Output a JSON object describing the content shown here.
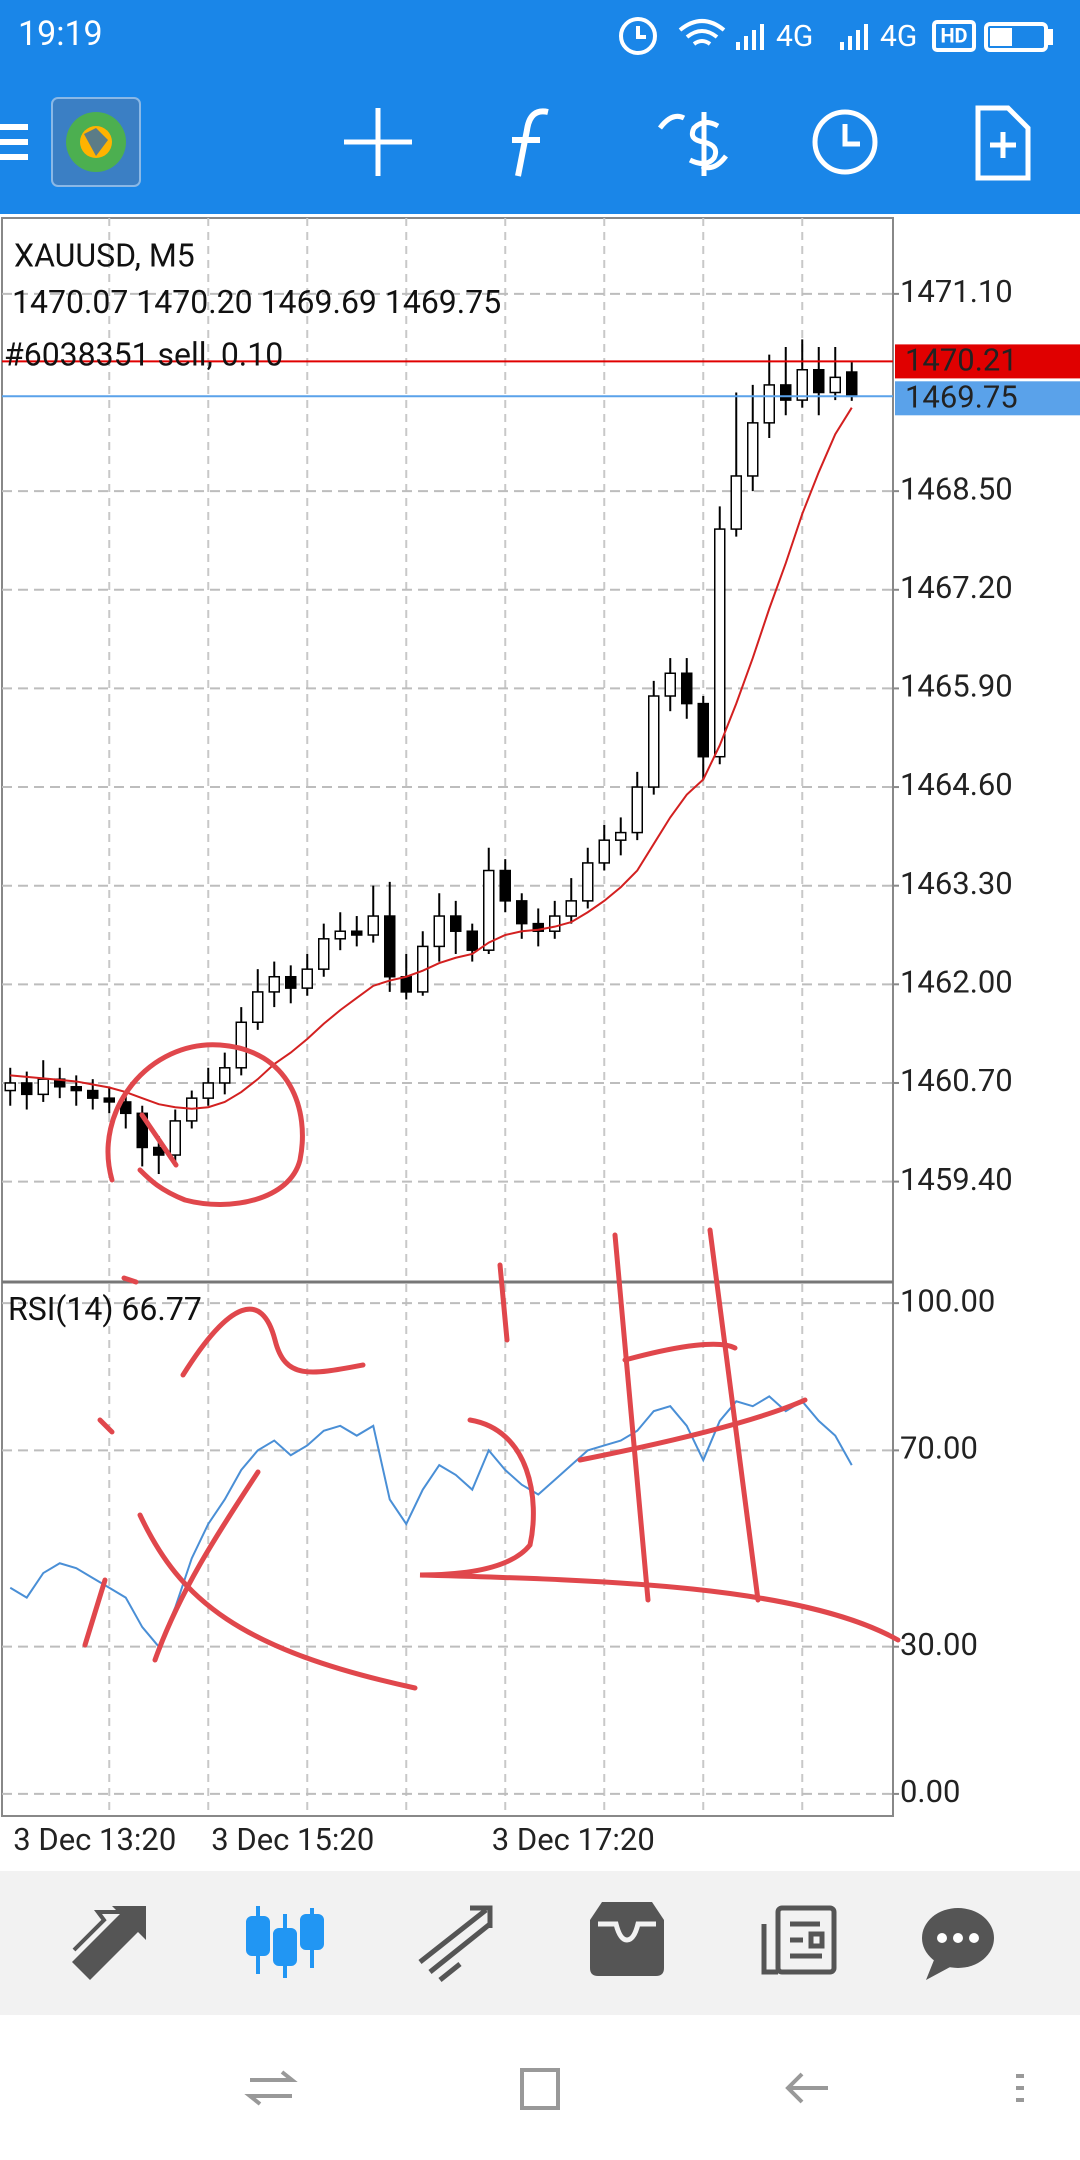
{
  "status_bar": {
    "time": "19:19",
    "network_1": "4G",
    "network_2": "4G",
    "hd": "HD"
  },
  "chart_data": [
    {
      "type": "candlestick",
      "title": "XAUUSD, M5",
      "quote": {
        "values": [
          1470.07,
          1470.2,
          1469.69,
          1469.75
        ],
        "value_labels": [
          "1470.07",
          "1470.20",
          "1469.69",
          "1469.75"
        ]
      },
      "order": {
        "label": "#6038351 sell, 0.10",
        "price": 1470.21,
        "color": "#e00000"
      },
      "bid": {
        "price": 1469.75,
        "color": "#5aa2ea"
      },
      "categories": [
        null,
        null,
        null,
        null,
        null,
        null,
        "3 Dec 13:20",
        null,
        null,
        null,
        null,
        null,
        null,
        null,
        null,
        null,
        null,
        null,
        "3 Dec 15:20",
        null,
        null,
        null,
        null,
        null,
        null,
        null,
        null,
        null,
        null,
        null,
        null,
        null,
        null,
        null,
        null,
        "3 Dec 17:20",
        null,
        null,
        null,
        null,
        null,
        null,
        null,
        null,
        null,
        null,
        null,
        null,
        null,
        null,
        null,
        null
      ],
      "open": [
        1460.6,
        1460.7,
        1460.55,
        1460.75,
        1460.65,
        1460.6,
        1460.5,
        1460.45,
        1460.3,
        1459.85,
        1459.75,
        1460.2,
        1460.5,
        1460.7,
        1460.9,
        1461.5,
        1461.9,
        1462.1,
        1461.95,
        1462.2,
        1462.6,
        1462.7,
        1462.65,
        1462.9,
        1462.1,
        1461.9,
        1462.5,
        1462.9,
        1462.7,
        1462.45,
        1463.5,
        1463.1,
        1462.8,
        1462.7,
        1462.9,
        1463.1,
        1463.6,
        1463.9,
        1464.0,
        1464.6,
        1465.8,
        1466.1,
        1465.7,
        1465.0,
        1468.0,
        1468.7,
        1469.4,
        1469.9,
        1469.7,
        1470.1,
        1469.8,
        1470.07
      ],
      "high": [
        1460.9,
        1460.85,
        1461.0,
        1460.9,
        1460.8,
        1460.75,
        1460.65,
        1460.55,
        1460.4,
        1460.0,
        1460.35,
        1460.6,
        1460.9,
        1461.1,
        1461.7,
        1462.2,
        1462.3,
        1462.25,
        1462.4,
        1462.8,
        1462.95,
        1462.9,
        1463.3,
        1463.35,
        1462.4,
        1462.7,
        1463.2,
        1463.1,
        1462.8,
        1463.8,
        1463.65,
        1463.2,
        1463.0,
        1463.1,
        1463.4,
        1463.8,
        1464.1,
        1464.2,
        1464.8,
        1466.0,
        1466.3,
        1466.3,
        1465.8,
        1468.3,
        1469.8,
        1469.9,
        1470.3,
        1470.4,
        1470.5,
        1470.4,
        1470.4,
        1470.2
      ],
      "low": [
        1460.4,
        1460.35,
        1460.45,
        1460.5,
        1460.4,
        1460.35,
        1460.3,
        1460.1,
        1459.6,
        1459.5,
        1459.65,
        1460.1,
        1460.4,
        1460.55,
        1460.8,
        1461.4,
        1461.7,
        1461.75,
        1461.85,
        1462.1,
        1462.45,
        1462.5,
        1462.55,
        1461.9,
        1461.8,
        1461.85,
        1462.3,
        1462.4,
        1462.3,
        1462.4,
        1462.95,
        1462.6,
        1462.5,
        1462.6,
        1462.8,
        1463.0,
        1463.5,
        1463.7,
        1463.9,
        1464.5,
        1465.6,
        1465.5,
        1464.7,
        1464.9,
        1467.9,
        1468.5,
        1469.2,
        1469.5,
        1469.6,
        1469.5,
        1469.7,
        1469.69
      ],
      "close": [
        1460.7,
        1460.55,
        1460.75,
        1460.65,
        1460.6,
        1460.5,
        1460.45,
        1460.3,
        1459.85,
        1459.75,
        1460.2,
        1460.5,
        1460.7,
        1460.9,
        1461.5,
        1461.9,
        1462.1,
        1461.95,
        1462.2,
        1462.6,
        1462.7,
        1462.65,
        1462.9,
        1462.1,
        1461.9,
        1462.5,
        1462.9,
        1462.7,
        1462.45,
        1463.5,
        1463.1,
        1462.8,
        1462.7,
        1462.9,
        1463.1,
        1463.6,
        1463.9,
        1464.0,
        1464.6,
        1465.8,
        1466.1,
        1465.7,
        1465.0,
        1468.0,
        1468.7,
        1469.4,
        1469.9,
        1469.7,
        1470.1,
        1469.8,
        1470.0,
        1469.75
      ],
      "ma": {
        "color": "#d32020",
        "values": [
          1460.8,
          1460.78,
          1460.76,
          1460.74,
          1460.72,
          1460.68,
          1460.64,
          1460.58,
          1460.5,
          1460.42,
          1460.38,
          1460.36,
          1460.38,
          1460.45,
          1460.58,
          1460.75,
          1460.95,
          1461.1,
          1461.28,
          1461.48,
          1461.66,
          1461.82,
          1461.98,
          1462.05,
          1462.1,
          1462.18,
          1462.28,
          1462.35,
          1462.4,
          1462.55,
          1462.65,
          1462.7,
          1462.72,
          1462.76,
          1462.82,
          1462.95,
          1463.1,
          1463.28,
          1463.5,
          1463.85,
          1464.2,
          1464.5,
          1464.7,
          1465.15,
          1465.7,
          1466.3,
          1466.95,
          1467.55,
          1468.2,
          1468.75,
          1469.25,
          1469.6
        ]
      },
      "ylim": [
        1458.09,
        1472.1
      ],
      "yticks": [
        {
          "value": 1471.1,
          "label": "1471.10"
        },
        {
          "value": 1468.5,
          "label": "1468.50"
        },
        {
          "value": 1467.2,
          "label": "1467.20"
        },
        {
          "value": 1465.9,
          "label": "1465.90"
        },
        {
          "value": 1464.6,
          "label": "1464.60"
        },
        {
          "value": 1463.3,
          "label": "1463.30"
        },
        {
          "value": 1462.0,
          "label": "1462.00"
        },
        {
          "value": 1460.7,
          "label": "1460.70"
        },
        {
          "value": 1459.4,
          "label": "1459.40"
        }
      ],
      "grid": true
    },
    {
      "type": "line",
      "title": "RSI(14)",
      "current": 66.77,
      "color": "#4a8fd6",
      "values": [
        42,
        40,
        45,
        47,
        46,
        44,
        42,
        40,
        34,
        30,
        38,
        48,
        55,
        60,
        66,
        70,
        72,
        69,
        71,
        74,
        75,
        73,
        75,
        60,
        55,
        62,
        67,
        65,
        62,
        70,
        66,
        63,
        61,
        64,
        67,
        70,
        71,
        72,
        74,
        78,
        79,
        75,
        68,
        76,
        80,
        79,
        81,
        78,
        80,
        76,
        73,
        67
      ],
      "ylim": [
        -4.5,
        103.9
      ],
      "yticks": [
        {
          "value": 100,
          "label": "100.00"
        },
        {
          "value": 70,
          "label": "70.00"
        },
        {
          "value": 30,
          "label": "30.00"
        },
        {
          "value": 0,
          "label": "0.00"
        }
      ],
      "grid": true
    }
  ]
}
